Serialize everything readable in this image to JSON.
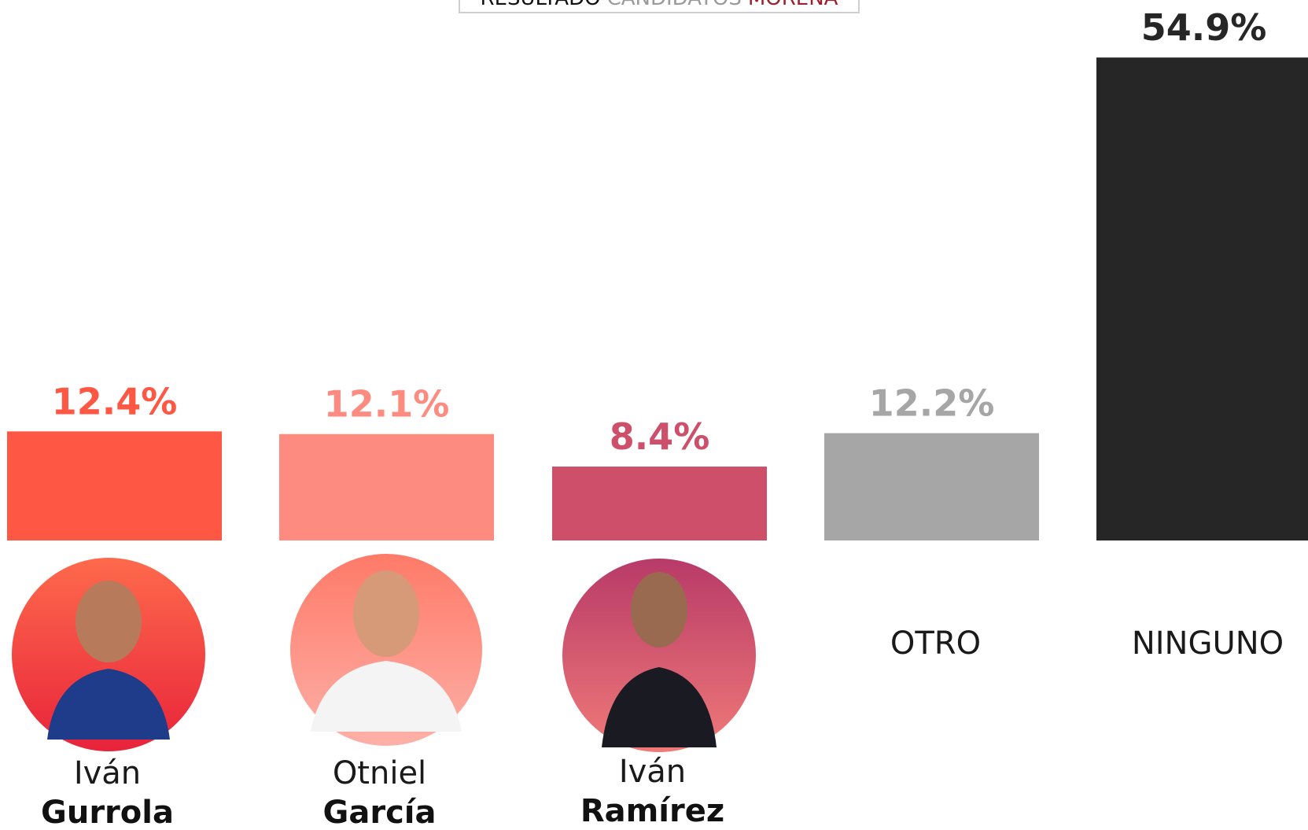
{
  "chart_data": {
    "type": "bar",
    "title": [
      {
        "text": "RESULTADO",
        "color": "#111111"
      },
      {
        "text": "CANDIDATOS",
        "color": "#9a9a9a"
      },
      {
        "text": "MORENA",
        "color": "#9c2030"
      }
    ],
    "categories": [
      [
        "Iván",
        "Gurrola"
      ],
      [
        "Otniel",
        "García"
      ],
      [
        "Iván",
        "Ramírez"
      ],
      [
        "OTRO"
      ],
      [
        "NINGUNO"
      ]
    ],
    "values": [
      12.4,
      12.1,
      8.4,
      12.2,
      54.9
    ],
    "value_labels": [
      "12.4%",
      "12.1%",
      "8.4%",
      "12.2%",
      "54.9%"
    ],
    "colors": [
      "#fe5744",
      "#fe8b7f",
      "#cd4f6a",
      "#a6a6a6",
      "#262626"
    ],
    "ylim": [
      0,
      55
    ]
  }
}
